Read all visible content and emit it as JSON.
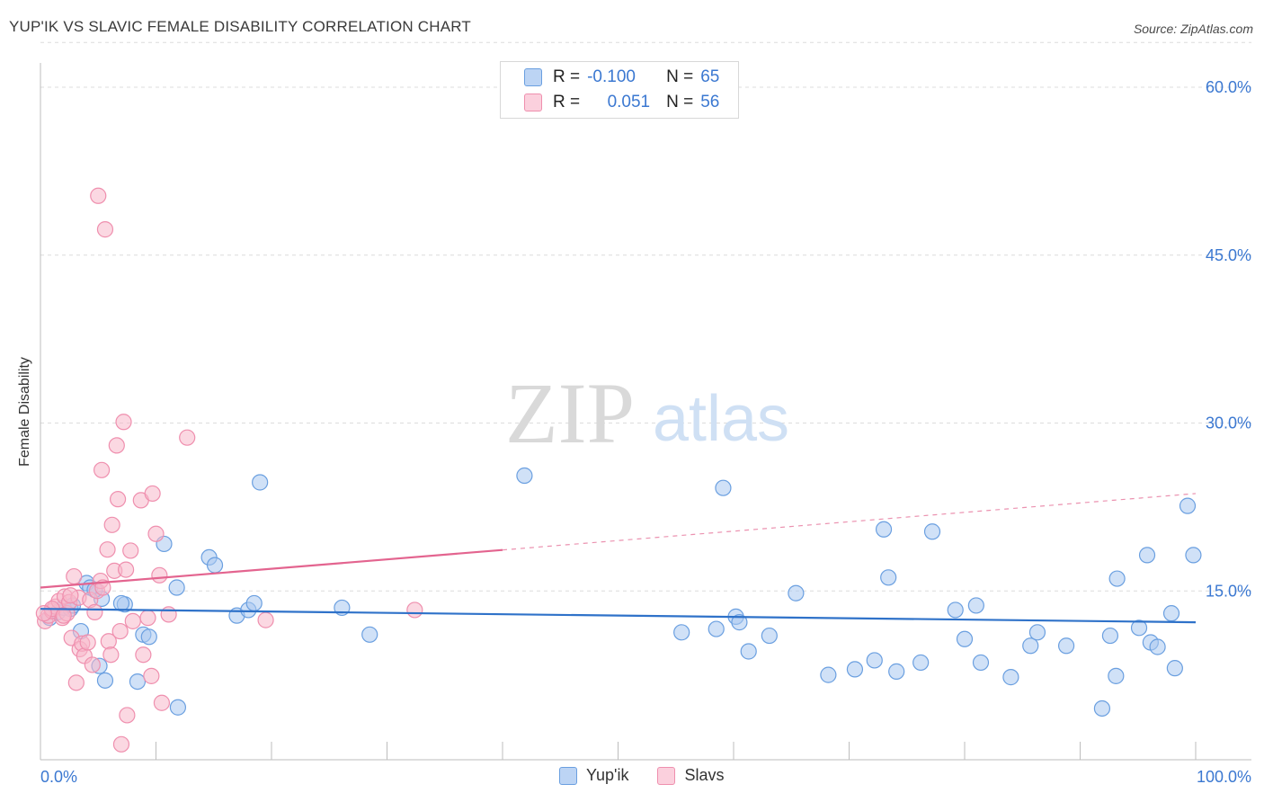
{
  "header": {
    "title": "YUP'IK VS SLAVIC FEMALE DISABILITY CORRELATION CHART",
    "source": "Source: ZipAtlas.com"
  },
  "watermark": {
    "zip": "ZIP",
    "atlas": "atlas"
  },
  "legend_top": {
    "rows": [
      {
        "r_label": "R =",
        "r_value": "-0.100",
        "n_label": "N =",
        "n_value": "65"
      },
      {
        "r_label": "R =",
        "r_value": "0.051",
        "n_label": "N =",
        "n_value": "56"
      }
    ]
  },
  "legend_bottom": {
    "series": [
      "Yup'ik",
      "Slavs"
    ]
  },
  "colors": {
    "yupik_fill": "#a9c8f0",
    "yupik_stroke": "#6a9fe0",
    "yupik_line": "#2f72c9",
    "slavs_fill": "#f7b8cb",
    "slavs_stroke": "#ef8fae",
    "slavs_line": "#e3648f",
    "tick_label": "#3b78d1",
    "grid": "#dcdcdc"
  },
  "chart_data": {
    "type": "scatter",
    "title": "YUP'IK VS SLAVIC FEMALE DISABILITY CORRELATION CHART",
    "xlabel": "",
    "ylabel": "Female Disability",
    "xlim": [
      0,
      100
    ],
    "ylim": [
      0,
      64
    ],
    "x_tick_labels": [
      "0.0%",
      "100.0%"
    ],
    "y_ticks": [
      15,
      30,
      45,
      60
    ],
    "y_tick_labels": [
      "15.0%",
      "30.0%",
      "45.0%",
      "60.0%"
    ],
    "grid": true,
    "legend_position": "bottom-center",
    "series": [
      {
        "name": "Yup'ik",
        "r": -0.1,
        "n": 65,
        "trend": {
          "x": [
            0,
            100
          ],
          "y": [
            13.4,
            12.2
          ],
          "dashed_from": null
        },
        "points": [
          [
            0.8,
            12.6
          ],
          [
            1.5,
            13.1
          ],
          [
            2.0,
            13.5
          ],
          [
            2.6,
            13.4
          ],
          [
            2.8,
            13.7
          ],
          [
            3.5,
            11.4
          ],
          [
            4.0,
            15.7
          ],
          [
            4.3,
            15.3
          ],
          [
            5.1,
            8.3
          ],
          [
            5.3,
            14.3
          ],
          [
            5.6,
            7.0
          ],
          [
            7.3,
            13.8
          ],
          [
            8.4,
            6.9
          ],
          [
            8.9,
            11.1
          ],
          [
            9.4,
            10.9
          ],
          [
            10.7,
            19.2
          ],
          [
            11.8,
            15.3
          ],
          [
            11.9,
            4.6
          ],
          [
            14.6,
            18.0
          ],
          [
            15.1,
            17.3
          ],
          [
            17.0,
            12.8
          ],
          [
            18.0,
            13.3
          ],
          [
            18.5,
            13.9
          ],
          [
            19.0,
            24.7
          ],
          [
            26.1,
            13.5
          ],
          [
            28.5,
            11.1
          ],
          [
            41.9,
            25.3
          ],
          [
            55.5,
            11.3
          ],
          [
            58.5,
            11.6
          ],
          [
            59.1,
            24.2
          ],
          [
            60.2,
            12.7
          ],
          [
            60.5,
            12.2
          ],
          [
            61.3,
            9.6
          ],
          [
            63.1,
            11.0
          ],
          [
            65.4,
            14.8
          ],
          [
            68.2,
            7.5
          ],
          [
            70.5,
            8.0
          ],
          [
            72.2,
            8.8
          ],
          [
            73.0,
            20.5
          ],
          [
            73.4,
            16.2
          ],
          [
            74.1,
            7.8
          ],
          [
            76.2,
            8.6
          ],
          [
            77.2,
            20.3
          ],
          [
            79.2,
            13.3
          ],
          [
            80.0,
            10.7
          ],
          [
            81.0,
            13.7
          ],
          [
            81.4,
            8.6
          ],
          [
            84.0,
            7.3
          ],
          [
            85.7,
            10.1
          ],
          [
            86.3,
            11.3
          ],
          [
            88.8,
            10.1
          ],
          [
            91.9,
            4.5
          ],
          [
            92.6,
            11.0
          ],
          [
            93.1,
            7.4
          ],
          [
            93.2,
            16.1
          ],
          [
            95.1,
            11.7
          ],
          [
            95.8,
            18.2
          ],
          [
            96.1,
            10.4
          ],
          [
            96.7,
            10.0
          ],
          [
            97.9,
            13.0
          ],
          [
            98.2,
            8.1
          ],
          [
            99.3,
            22.6
          ],
          [
            99.8,
            18.2
          ],
          [
            7.0,
            13.9
          ],
          [
            4.7,
            15.1
          ]
        ]
      },
      {
        "name": "Slavs",
        "r": 0.051,
        "n": 56,
        "trend": {
          "x": [
            0,
            100
          ],
          "y": [
            15.3,
            23.7
          ],
          "dashed_from": 40
        },
        "points": [
          [
            0.4,
            12.3
          ],
          [
            0.7,
            12.8
          ],
          [
            1.0,
            13.2
          ],
          [
            1.3,
            13.6
          ],
          [
            1.6,
            14.1
          ],
          [
            1.9,
            12.6
          ],
          [
            2.1,
            14.5
          ],
          [
            2.3,
            13.0
          ],
          [
            2.5,
            14.0
          ],
          [
            2.7,
            10.8
          ],
          [
            2.9,
            16.3
          ],
          [
            3.1,
            6.8
          ],
          [
            3.3,
            14.4
          ],
          [
            3.4,
            9.8
          ],
          [
            3.6,
            10.3
          ],
          [
            3.8,
            9.2
          ],
          [
            4.1,
            10.4
          ],
          [
            4.3,
            14.2
          ],
          [
            4.5,
            8.4
          ],
          [
            4.7,
            13.1
          ],
          [
            4.9,
            15.0
          ],
          [
            5.0,
            50.3
          ],
          [
            5.2,
            15.9
          ],
          [
            5.3,
            25.8
          ],
          [
            5.4,
            15.3
          ],
          [
            5.6,
            47.3
          ],
          [
            5.8,
            18.7
          ],
          [
            5.9,
            10.5
          ],
          [
            6.1,
            9.3
          ],
          [
            6.2,
            20.9
          ],
          [
            6.4,
            16.8
          ],
          [
            6.6,
            28.0
          ],
          [
            6.7,
            23.2
          ],
          [
            6.9,
            11.4
          ],
          [
            7.0,
            1.3
          ],
          [
            7.2,
            30.1
          ],
          [
            7.4,
            16.9
          ],
          [
            7.5,
            3.9
          ],
          [
            7.8,
            18.6
          ],
          [
            8.0,
            12.3
          ],
          [
            8.7,
            23.1
          ],
          [
            8.9,
            9.3
          ],
          [
            9.3,
            12.6
          ],
          [
            9.6,
            7.4
          ],
          [
            9.7,
            23.7
          ],
          [
            10.0,
            20.1
          ],
          [
            10.3,
            16.4
          ],
          [
            10.5,
            5.0
          ],
          [
            11.1,
            12.9
          ],
          [
            12.7,
            28.7
          ],
          [
            19.5,
            12.4
          ],
          [
            32.4,
            13.3
          ],
          [
            1.0,
            13.4
          ],
          [
            2.0,
            12.8
          ],
          [
            0.3,
            13.0
          ],
          [
            2.6,
            14.6
          ]
        ]
      }
    ]
  }
}
